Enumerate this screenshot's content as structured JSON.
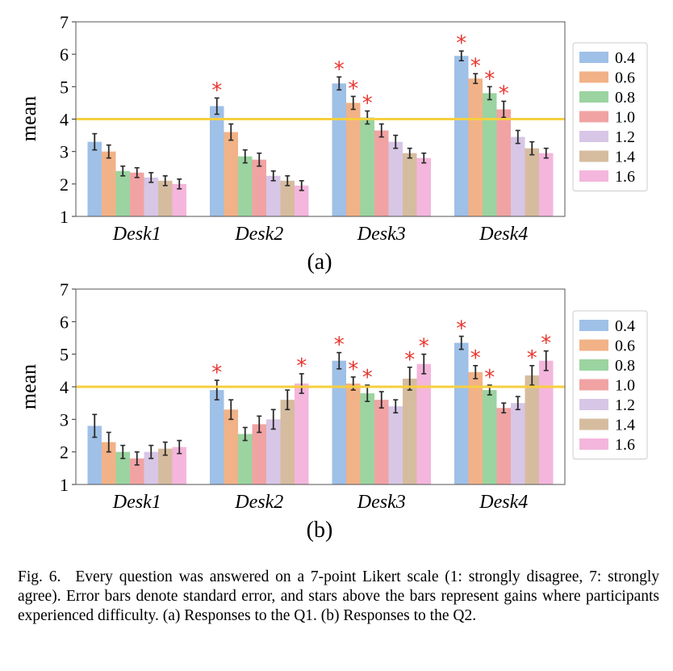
{
  "figure": {
    "panel_labels": [
      "(a)",
      "(b)"
    ],
    "caption_lead": "Fig. 6.",
    "caption_text": "Every question was answered on a 7-point Likert scale (1: strongly disagree, 7: strongly agree). Error bars denote standard error, and stars above the bars represent gains where participants experienced difficulty. (a) Responses to the Q1. (b) Responses to the Q2."
  },
  "chart_data": [
    {
      "type": "bar",
      "panel": "(a)",
      "ylabel": "mean",
      "xlabel": "",
      "ylim": [
        1,
        7
      ],
      "yticks": [
        1,
        2,
        3,
        4,
        5,
        6,
        7
      ],
      "reference_line": 4,
      "categories": [
        "Desk1",
        "Desk2",
        "Desk3",
        "Desk4"
      ],
      "legend_position": "right",
      "grid": false,
      "marker": "*",
      "series": [
        {
          "name": "0.4",
          "color": "#9fc0e7",
          "values": [
            3.3,
            4.4,
            5.1,
            5.95
          ],
          "errors": [
            0.25,
            0.25,
            0.2,
            0.15
          ],
          "stars": [
            false,
            true,
            true,
            true
          ]
        },
        {
          "name": "0.6",
          "color": "#f2b287",
          "values": [
            3.0,
            3.6,
            4.5,
            5.25
          ],
          "errors": [
            0.2,
            0.25,
            0.2,
            0.15
          ],
          "stars": [
            false,
            false,
            true,
            true
          ]
        },
        {
          "name": "0.8",
          "color": "#9bd4a0",
          "values": [
            2.4,
            2.85,
            4.05,
            4.8
          ],
          "errors": [
            0.15,
            0.2,
            0.2,
            0.2
          ],
          "stars": [
            false,
            false,
            true,
            true
          ]
        },
        {
          "name": "1.0",
          "color": "#f1a3a3",
          "values": [
            2.35,
            2.75,
            3.65,
            4.3
          ],
          "errors": [
            0.15,
            0.2,
            0.2,
            0.25
          ],
          "stars": [
            false,
            false,
            false,
            true
          ]
        },
        {
          "name": "1.2",
          "color": "#d7c6e6",
          "values": [
            2.2,
            2.25,
            3.3,
            3.45
          ],
          "errors": [
            0.15,
            0.15,
            0.2,
            0.2
          ],
          "stars": [
            false,
            false,
            false,
            false
          ]
        },
        {
          "name": "1.4",
          "color": "#d6bc9f",
          "values": [
            2.1,
            2.1,
            2.95,
            3.1
          ],
          "errors": [
            0.15,
            0.15,
            0.15,
            0.2
          ],
          "stars": [
            false,
            false,
            false,
            false
          ]
        },
        {
          "name": "1.6",
          "color": "#f4b6dc",
          "values": [
            2.0,
            1.95,
            2.8,
            2.95
          ],
          "errors": [
            0.15,
            0.15,
            0.15,
            0.15
          ],
          "stars": [
            false,
            false,
            false,
            false
          ]
        }
      ]
    },
    {
      "type": "bar",
      "panel": "(b)",
      "ylabel": "mean",
      "xlabel": "",
      "ylim": [
        1,
        7
      ],
      "yticks": [
        1,
        2,
        3,
        4,
        5,
        6,
        7
      ],
      "reference_line": 4,
      "categories": [
        "Desk1",
        "Desk2",
        "Desk3",
        "Desk4"
      ],
      "legend_position": "right",
      "grid": false,
      "marker": "*",
      "series": [
        {
          "name": "0.4",
          "color": "#9fc0e7",
          "values": [
            2.8,
            3.9,
            4.8,
            5.35
          ],
          "errors": [
            0.35,
            0.3,
            0.25,
            0.2
          ],
          "stars": [
            false,
            true,
            true,
            true
          ]
        },
        {
          "name": "0.6",
          "color": "#f2b287",
          "values": [
            2.3,
            3.3,
            4.1,
            4.45
          ],
          "errors": [
            0.3,
            0.3,
            0.2,
            0.2
          ],
          "stars": [
            false,
            false,
            true,
            true
          ]
        },
        {
          "name": "0.8",
          "color": "#9bd4a0",
          "values": [
            2.0,
            2.55,
            3.8,
            3.9
          ],
          "errors": [
            0.2,
            0.2,
            0.25,
            0.15
          ],
          "stars": [
            false,
            false,
            true,
            true
          ]
        },
        {
          "name": "1.0",
          "color": "#f1a3a3",
          "values": [
            1.8,
            2.85,
            3.6,
            3.35
          ],
          "errors": [
            0.2,
            0.25,
            0.25,
            0.15
          ],
          "stars": [
            false,
            false,
            false,
            false
          ]
        },
        {
          "name": "1.2",
          "color": "#d7c6e6",
          "values": [
            2.0,
            3.0,
            3.4,
            3.5
          ],
          "errors": [
            0.2,
            0.3,
            0.2,
            0.2
          ],
          "stars": [
            false,
            false,
            false,
            false
          ]
        },
        {
          "name": "1.4",
          "color": "#d6bc9f",
          "values": [
            2.1,
            3.6,
            4.25,
            4.35
          ],
          "errors": [
            0.2,
            0.3,
            0.35,
            0.3
          ],
          "stars": [
            false,
            false,
            true,
            true
          ]
        },
        {
          "name": "1.6",
          "color": "#f4b6dc",
          "values": [
            2.15,
            4.1,
            4.7,
            4.8
          ],
          "errors": [
            0.2,
            0.3,
            0.3,
            0.3
          ],
          "stars": [
            false,
            true,
            true,
            true
          ]
        }
      ]
    }
  ]
}
